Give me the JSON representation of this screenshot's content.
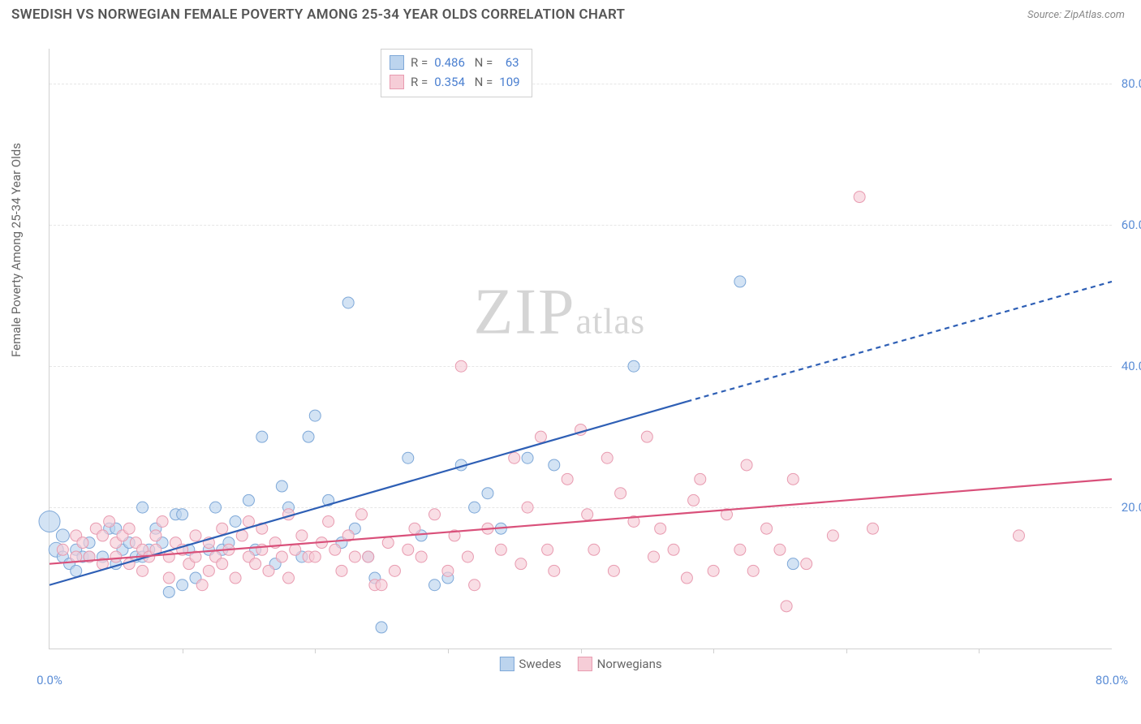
{
  "header": {
    "title": "SWEDISH VS NORWEGIAN FEMALE POVERTY AMONG 25-34 YEAR OLDS CORRELATION CHART",
    "source": "Source: ZipAtlas.com"
  },
  "yaxis": {
    "label": "Female Poverty Among 25-34 Year Olds"
  },
  "watermark": {
    "z": "ZIP",
    "atlas": "atlas"
  },
  "chart": {
    "type": "scatter",
    "background_color": "#ffffff",
    "grid_color": "#e6e6e6",
    "axis_color": "#d0d0d0",
    "tick_label_color": "#5b8dd6",
    "xlim": [
      0,
      80
    ],
    "ylim": [
      0,
      85
    ],
    "ytick_labels": [
      {
        "v": 20,
        "label": "20.0%"
      },
      {
        "v": 40,
        "label": "40.0%"
      },
      {
        "v": 60,
        "label": "60.0%"
      },
      {
        "v": 80,
        "label": "80.0%"
      }
    ],
    "xtick_labels": [
      {
        "v": 0,
        "label": "0.0%"
      },
      {
        "v": 80,
        "label": "80.0%"
      }
    ],
    "xtick_marks": [
      10,
      20,
      30,
      40,
      50,
      60,
      70
    ],
    "series": [
      {
        "name": "Swedes",
        "fill": "#bcd4ee",
        "stroke": "#7ea8d8",
        "fill_opacity": 0.65,
        "marker_r": 7,
        "R": "0.486",
        "N": "63",
        "trend": {
          "color": "#2e5fb5",
          "width": 2.2,
          "solid": {
            "x1": 0,
            "y1": 9,
            "x2": 48,
            "y2": 35
          },
          "dashed": {
            "x1": 48,
            "y1": 35,
            "x2": 80,
            "y2": 52
          }
        },
        "points": [
          [
            0,
            18,
            13
          ],
          [
            0.5,
            14,
            9
          ],
          [
            1,
            16,
            8
          ],
          [
            1,
            13,
            7
          ],
          [
            1.5,
            12,
            7
          ],
          [
            2,
            11,
            7
          ],
          [
            2,
            14,
            7
          ],
          [
            2.5,
            13,
            7
          ],
          [
            3,
            15,
            7
          ],
          [
            3,
            13,
            7
          ],
          [
            4,
            13,
            7
          ],
          [
            4.5,
            17,
            7
          ],
          [
            5,
            17,
            7
          ],
          [
            5,
            12,
            7
          ],
          [
            5.5,
            14,
            7
          ],
          [
            6,
            15,
            7
          ],
          [
            6.5,
            13,
            7
          ],
          [
            7,
            20,
            7
          ],
          [
            7,
            13,
            7
          ],
          [
            7.5,
            14,
            7
          ],
          [
            8,
            17,
            7
          ],
          [
            8.5,
            15,
            7
          ],
          [
            9,
            8,
            7
          ],
          [
            9.5,
            19,
            7
          ],
          [
            10,
            9,
            7
          ],
          [
            10,
            19,
            7
          ],
          [
            10.5,
            14,
            7
          ],
          [
            11,
            10,
            7
          ],
          [
            12,
            14,
            7
          ],
          [
            12.5,
            20,
            7
          ],
          [
            13,
            14,
            7
          ],
          [
            13.5,
            15,
            7
          ],
          [
            14,
            18,
            7
          ],
          [
            15,
            21,
            7
          ],
          [
            15.5,
            14,
            7
          ],
          [
            16,
            30,
            7
          ],
          [
            17,
            12,
            7
          ],
          [
            17.5,
            23,
            7
          ],
          [
            18,
            20,
            7
          ],
          [
            19,
            13,
            7
          ],
          [
            19.5,
            30,
            7
          ],
          [
            20,
            33,
            7
          ],
          [
            21,
            21,
            7
          ],
          [
            22,
            15,
            7
          ],
          [
            22.5,
            49,
            7
          ],
          [
            23,
            17,
            7
          ],
          [
            24,
            13,
            7
          ],
          [
            24.5,
            10,
            7
          ],
          [
            25,
            3,
            7
          ],
          [
            26,
            80,
            8
          ],
          [
            27,
            27,
            7
          ],
          [
            28,
            16,
            7
          ],
          [
            29,
            9,
            7
          ],
          [
            30,
            10,
            7
          ],
          [
            31,
            26,
            7
          ],
          [
            32,
            20,
            7
          ],
          [
            33,
            22,
            7
          ],
          [
            34,
            17,
            7
          ],
          [
            36,
            27,
            7
          ],
          [
            38,
            26,
            7
          ],
          [
            44,
            40,
            7
          ],
          [
            52,
            52,
            7
          ],
          [
            56,
            12,
            7
          ]
        ]
      },
      {
        "name": "Norwegians",
        "fill": "#f6cdd7",
        "stroke": "#e89bb0",
        "fill_opacity": 0.65,
        "marker_r": 7,
        "R": "0.354",
        "N": "109",
        "trend": {
          "color": "#d9507a",
          "width": 2.2,
          "solid": {
            "x1": 0,
            "y1": 12,
            "x2": 80,
            "y2": 24
          },
          "dashed": null
        },
        "points": [
          [
            1,
            14,
            7
          ],
          [
            2,
            13,
            7
          ],
          [
            2,
            16,
            7
          ],
          [
            2.5,
            15,
            7
          ],
          [
            3,
            13,
            7
          ],
          [
            3.5,
            17,
            7
          ],
          [
            4,
            16,
            7
          ],
          [
            4,
            12,
            7
          ],
          [
            4.5,
            18,
            7
          ],
          [
            5,
            15,
            7
          ],
          [
            5,
            13,
            7
          ],
          [
            5.5,
            16,
            7
          ],
          [
            6,
            12,
            7
          ],
          [
            6,
            17,
            7
          ],
          [
            6.5,
            15,
            7
          ],
          [
            7,
            14,
            7
          ],
          [
            7,
            11,
            7
          ],
          [
            7.5,
            13,
            7
          ],
          [
            8,
            16,
            7
          ],
          [
            8,
            14,
            7
          ],
          [
            8.5,
            18,
            7
          ],
          [
            9,
            13,
            7
          ],
          [
            9,
            10,
            7
          ],
          [
            9.5,
            15,
            7
          ],
          [
            10,
            14,
            7
          ],
          [
            10.5,
            12,
            7
          ],
          [
            11,
            16,
            7
          ],
          [
            11,
            13,
            7
          ],
          [
            11.5,
            9,
            7
          ],
          [
            12,
            15,
            7
          ],
          [
            12,
            11,
            7
          ],
          [
            12.5,
            13,
            7
          ],
          [
            13,
            17,
            7
          ],
          [
            13,
            12,
            7
          ],
          [
            13.5,
            14,
            7
          ],
          [
            14,
            10,
            7
          ],
          [
            14.5,
            16,
            7
          ],
          [
            15,
            13,
            7
          ],
          [
            15,
            18,
            7
          ],
          [
            15.5,
            12,
            7
          ],
          [
            16,
            14,
            7
          ],
          [
            16,
            17,
            7
          ],
          [
            16.5,
            11,
            7
          ],
          [
            17,
            15,
            7
          ],
          [
            17.5,
            13,
            7
          ],
          [
            18,
            19,
            7
          ],
          [
            18,
            10,
            7
          ],
          [
            18.5,
            14,
            7
          ],
          [
            19,
            16,
            7
          ],
          [
            19.5,
            13,
            7
          ],
          [
            20,
            13,
            7
          ],
          [
            20.5,
            15,
            7
          ],
          [
            21,
            18,
            7
          ],
          [
            21.5,
            14,
            7
          ],
          [
            22,
            11,
            7
          ],
          [
            22.5,
            16,
            7
          ],
          [
            23,
            13,
            7
          ],
          [
            23.5,
            19,
            7
          ],
          [
            24,
            13,
            7
          ],
          [
            24.5,
            9,
            7
          ],
          [
            25,
            9,
            7
          ],
          [
            25.5,
            15,
            7
          ],
          [
            26,
            11,
            7
          ],
          [
            27,
            14,
            7
          ],
          [
            27.5,
            17,
            7
          ],
          [
            28,
            13,
            7
          ],
          [
            29,
            19,
            7
          ],
          [
            30,
            11,
            7
          ],
          [
            30.5,
            16,
            7
          ],
          [
            31,
            40,
            7
          ],
          [
            31.5,
            13,
            7
          ],
          [
            32,
            9,
            7
          ],
          [
            33,
            17,
            7
          ],
          [
            34,
            14,
            7
          ],
          [
            35,
            27,
            7
          ],
          [
            35.5,
            12,
            7
          ],
          [
            36,
            20,
            7
          ],
          [
            37,
            30,
            7
          ],
          [
            37.5,
            14,
            7
          ],
          [
            38,
            11,
            7
          ],
          [
            39,
            24,
            7
          ],
          [
            40,
            31,
            7
          ],
          [
            40.5,
            19,
            7
          ],
          [
            41,
            14,
            7
          ],
          [
            42,
            27,
            7
          ],
          [
            42.5,
            11,
            7
          ],
          [
            43,
            22,
            7
          ],
          [
            44,
            18,
            7
          ],
          [
            45,
            30,
            7
          ],
          [
            45.5,
            13,
            7
          ],
          [
            46,
            17,
            7
          ],
          [
            47,
            14,
            7
          ],
          [
            48,
            10,
            7
          ],
          [
            48.5,
            21,
            7
          ],
          [
            49,
            24,
            7
          ],
          [
            50,
            11,
            7
          ],
          [
            51,
            19,
            7
          ],
          [
            52,
            14,
            7
          ],
          [
            52.5,
            26,
            7
          ],
          [
            53,
            11,
            7
          ],
          [
            54,
            17,
            7
          ],
          [
            55,
            14,
            7
          ],
          [
            55.5,
            6,
            7
          ],
          [
            56,
            24,
            7
          ],
          [
            57,
            12,
            7
          ],
          [
            59,
            16,
            7
          ],
          [
            61,
            64,
            7
          ],
          [
            62,
            17,
            7
          ],
          [
            73,
            16,
            7
          ]
        ]
      }
    ]
  },
  "legend": [
    {
      "label": "Swedes",
      "fill": "#bcd4ee",
      "stroke": "#7ea8d8"
    },
    {
      "label": "Norwegians",
      "fill": "#f6cdd7",
      "stroke": "#e89bb0"
    }
  ]
}
